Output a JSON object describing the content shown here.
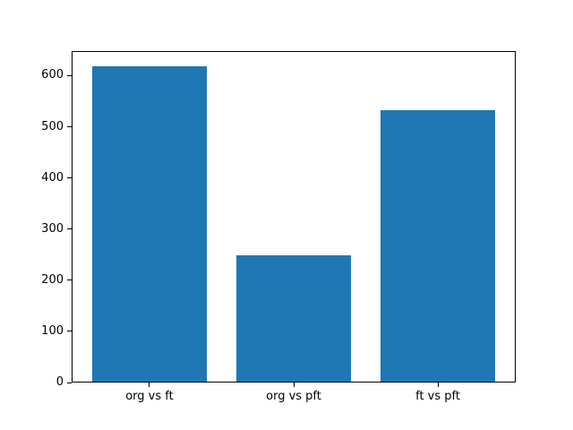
{
  "figure": {
    "background": "#ffffff"
  },
  "chart_data": {
    "type": "bar",
    "title": "",
    "xlabel": "",
    "ylabel": "",
    "categories": [
      "org vs ft",
      "org vs pft",
      "ft vs pft"
    ],
    "values": [
      617,
      247,
      530
    ],
    "bar_color": "#1f77b4",
    "axis_color": "#000000",
    "text_color": "#000000",
    "ylim": [
      0,
      648
    ],
    "yticks": [
      0,
      100,
      200,
      300,
      400,
      500,
      600
    ],
    "xlim": [
      -0.54,
      2.54
    ],
    "bar_width": 0.8,
    "grid": false,
    "legend": false
  }
}
